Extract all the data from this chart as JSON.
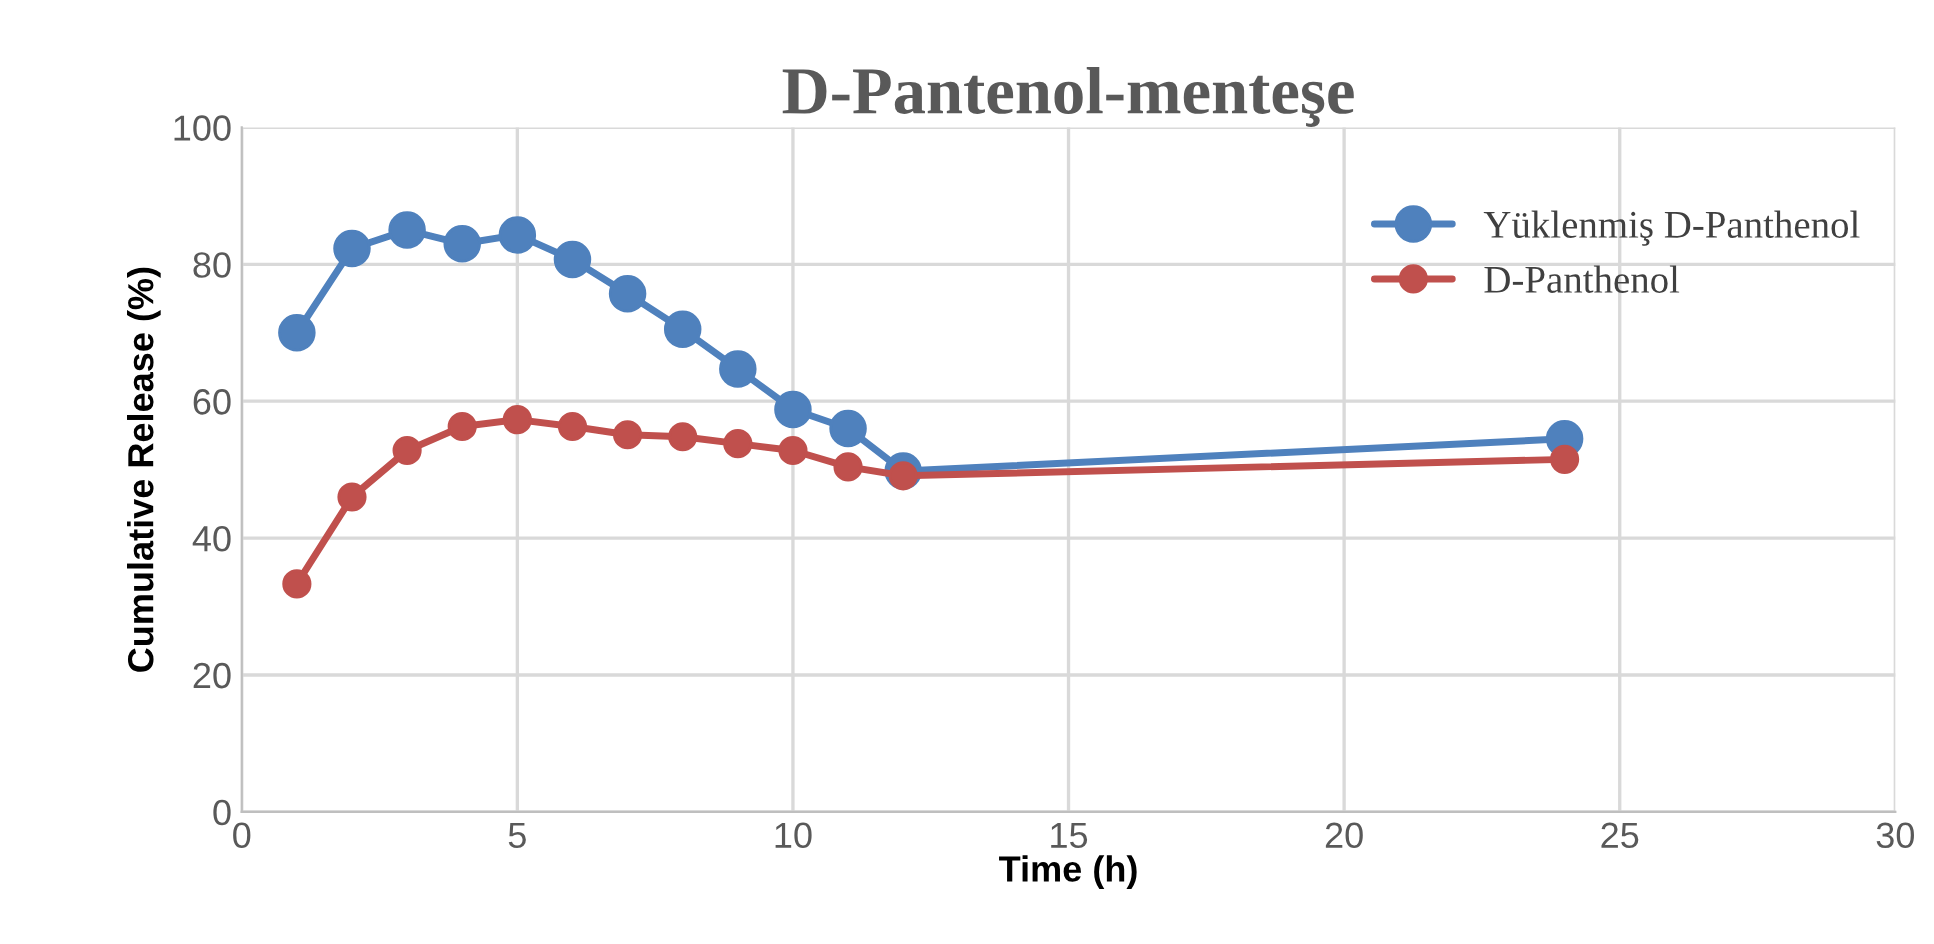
{
  "chart_data": {
    "type": "line",
    "title": "D-Pantenol-menteşe",
    "xlabel": "Time (h)",
    "ylabel": "Cumulative Release (%)",
    "x": [
      1,
      2,
      3,
      4,
      5,
      6,
      7,
      8,
      9,
      10,
      11,
      12,
      24
    ],
    "series": [
      {
        "name": "Yüklenmiş D-Panthenol",
        "color": "#4f81bd",
        "values": [
          70,
          82.3,
          85,
          83,
          84.3,
          80.7,
          75.7,
          70.5,
          64.7,
          58.8,
          56,
          49.8,
          54.5
        ]
      },
      {
        "name": "D-Panthenol",
        "color": "#c0504d",
        "values": [
          33.3,
          46,
          52.8,
          56.3,
          57.3,
          56.3,
          55.1,
          54.8,
          53.8,
          52.8,
          50.4,
          49.1,
          51.5
        ]
      }
    ],
    "xlim": [
      0,
      30
    ],
    "xticks": [
      0,
      5,
      10,
      15,
      20,
      25,
      30
    ],
    "ylim": [
      0,
      100
    ],
    "yticks": [
      0,
      20,
      40,
      60,
      80,
      100
    ],
    "grid": true,
    "legend": "top right",
    "marker": "circle",
    "line_style": "solid"
  }
}
